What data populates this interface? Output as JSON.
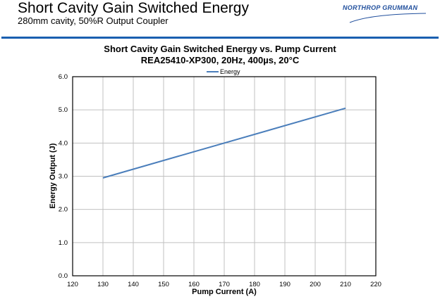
{
  "slide": {
    "title": "Short Cavity Gain Switched Energy",
    "subtitle": "280mm cavity, 50%R Output Coupler",
    "logo_text": "NORTHROP GRUMMAN"
  },
  "colors": {
    "accent": "#1a5fb0",
    "series": "#4a7ebb",
    "grid": "#c0c0c0"
  },
  "chart_data": {
    "type": "line",
    "title": "Short Cavity Gain Switched Energy vs. Pump Current",
    "subtitle": "REA25410-XP300,  20Hz, 400µs,  20°C",
    "xlabel": "Pump Current (A)",
    "ylabel": "Energy Output (J)",
    "xlim": [
      120,
      220
    ],
    "ylim": [
      0,
      6
    ],
    "xticks": [
      "120",
      "130",
      "140",
      "150",
      "160",
      "170",
      "180",
      "190",
      "200",
      "210",
      "220"
    ],
    "yticks": [
      "0.0",
      "1.0",
      "2.0",
      "3.0",
      "4.0",
      "5.0",
      "6.0"
    ],
    "grid": true,
    "legend": "top-center",
    "series": [
      {
        "name": "Energy",
        "x": [
          130,
          210
        ],
        "values": [
          2.95,
          5.05
        ]
      }
    ]
  }
}
